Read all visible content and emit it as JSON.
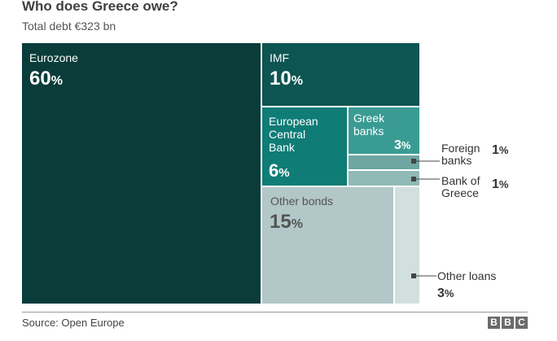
{
  "header": {
    "title": "Who does Greece owe?",
    "subtitle": "Total debt €323 bn"
  },
  "footer": {
    "source": "Source: Open Europe",
    "logo": [
      "B",
      "B",
      "C"
    ]
  },
  "chart_data": {
    "type": "treemap",
    "title": "Who does Greece owe?",
    "subtitle": "Total debt €323 bn",
    "unit": "%",
    "items": [
      {
        "name": "Eurozone",
        "value": 60,
        "color": "#0a3c3a",
        "text_color": "#ffffff"
      },
      {
        "name": "IMF",
        "value": 10,
        "color": "#0d5552",
        "text_color": "#ffffff"
      },
      {
        "name": "European Central Bank",
        "value": 6,
        "color": "#0f7c76",
        "text_color": "#ffffff"
      },
      {
        "name": "Greek banks",
        "value": 3,
        "color": "#3a9b94",
        "text_color": "#ffffff"
      },
      {
        "name": "Foreign banks",
        "value": 1,
        "color": "#6fa6a1",
        "text_color": "#333333"
      },
      {
        "name": "Bank of Greece",
        "value": 1,
        "color": "#8fbab5",
        "text_color": "#333333"
      },
      {
        "name": "Other bonds",
        "value": 15,
        "color": "#b2c7c8",
        "text_color": "#555555"
      },
      {
        "name": "Other loans",
        "value": 3,
        "color": "#d2dfdf",
        "text_color": "#333333"
      }
    ]
  }
}
